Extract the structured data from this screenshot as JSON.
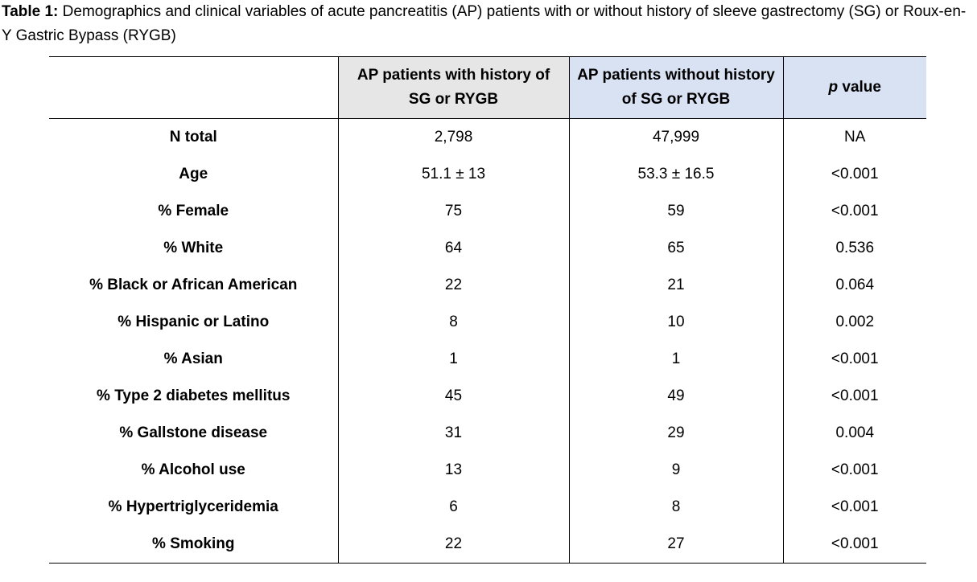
{
  "caption": {
    "label": "Table 1:",
    "text": "Demographics and clinical variables of acute pancreatitis (AP) patients with or without history of sleeve gastrectomy (SG) or Roux-en-Y Gastric Bypass (RYGB)"
  },
  "table": {
    "headers": {
      "blank": "",
      "with_history": "AP patients with history of SG or RYGB",
      "without_history": "AP patients without history of SG or RYGB",
      "p_letter": "p",
      "p_rest": " value"
    },
    "rows": [
      {
        "label": "N total",
        "with": "2,798",
        "without": "47,999",
        "p": "NA"
      },
      {
        "label": "Age",
        "with": "51.1 ± 13",
        "without": "53.3 ± 16.5",
        "p": "<0.001"
      },
      {
        "label": "% Female",
        "with": "75",
        "without": "59",
        "p": "<0.001"
      },
      {
        "label": "% White",
        "with": "64",
        "without": "65",
        "p": "0.536"
      },
      {
        "label": "% Black or African American",
        "with": "22",
        "without": "21",
        "p": "0.064"
      },
      {
        "label": "% Hispanic or Latino",
        "with": "8",
        "without": "10",
        "p": "0.002"
      },
      {
        "label": "% Asian",
        "with": "1",
        "without": "1",
        "p": "<0.001"
      },
      {
        "label": "% Type 2 diabetes mellitus",
        "with": "45",
        "without": "49",
        "p": "<0.001"
      },
      {
        "label": "% Gallstone disease",
        "with": "31",
        "without": "29",
        "p": "0.004"
      },
      {
        "label": "% Alcohol use",
        "with": "13",
        "without": "9",
        "p": "<0.001"
      },
      {
        "label": "% Hypertriglyceridemia",
        "with": "6",
        "without": "8",
        "p": "<0.001"
      },
      {
        "label": "% Smoking",
        "with": "22",
        "without": "27",
        "p": "<0.001"
      }
    ]
  },
  "colors": {
    "header_with_bg": "#e7e6e6",
    "header_without_bg": "#d9e2f3",
    "header_p_bg": "#d9e2f3",
    "rule": "#000000"
  }
}
